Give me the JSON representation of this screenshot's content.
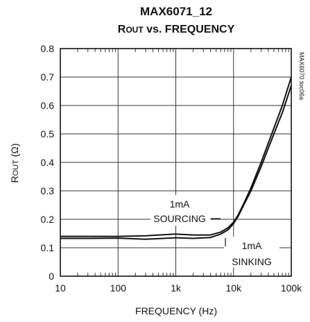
{
  "chart_data": {
    "type": "line",
    "title": "MAX6071_12",
    "subtitle_main": "R",
    "subtitle_sub": "OUT",
    "subtitle_rest": " vs. FREQUENCY",
    "xlabel": "FREQUENCY (Hz)",
    "ylabel_main": "R",
    "ylabel_sub": "OUT",
    "ylabel_rest": " (Ω)",
    "x_scale": "log",
    "xlim": [
      10,
      100000
    ],
    "ylim": [
      0,
      0.8
    ],
    "x_ticks": [
      10,
      100,
      1000,
      10000,
      100000
    ],
    "x_tick_labels": [
      "10",
      "100",
      "1k",
      "10k",
      "100k"
    ],
    "y_ticks": [
      0,
      0.1,
      0.2,
      0.3,
      0.4,
      0.5,
      0.6,
      0.7,
      0.8
    ],
    "y_tick_labels": [
      "0",
      "0.1",
      "0.2",
      "0.3",
      "0.4",
      "0.5",
      "0.6",
      "0.7",
      "0.8"
    ],
    "grid": true,
    "side_note": "MAX6070 toc06a",
    "annotations": [
      {
        "line1": "1mA",
        "line2": "SOURCING"
      },
      {
        "line1": "1mA",
        "line2": "SINKING"
      }
    ],
    "series": [
      {
        "x": [
          10,
          30,
          100,
          300,
          1000,
          2000,
          4000,
          6000,
          8000,
          10000,
          12000,
          15000,
          20000,
          30000,
          50000,
          70000,
          100000
        ],
        "y": [
          0.14,
          0.14,
          0.14,
          0.142,
          0.148,
          0.145,
          0.145,
          0.155,
          0.17,
          0.19,
          0.215,
          0.255,
          0.31,
          0.4,
          0.52,
          0.6,
          0.7
        ]
      },
      {
        "x": [
          10,
          30,
          100,
          300,
          1000,
          2000,
          4000,
          6000,
          8000,
          10000,
          12000,
          15000,
          20000,
          30000,
          50000,
          70000,
          100000
        ],
        "y": [
          0.133,
          0.133,
          0.134,
          0.13,
          0.135,
          0.133,
          0.136,
          0.148,
          0.163,
          0.185,
          0.21,
          0.25,
          0.3,
          0.385,
          0.5,
          0.575,
          0.67
        ]
      }
    ]
  }
}
